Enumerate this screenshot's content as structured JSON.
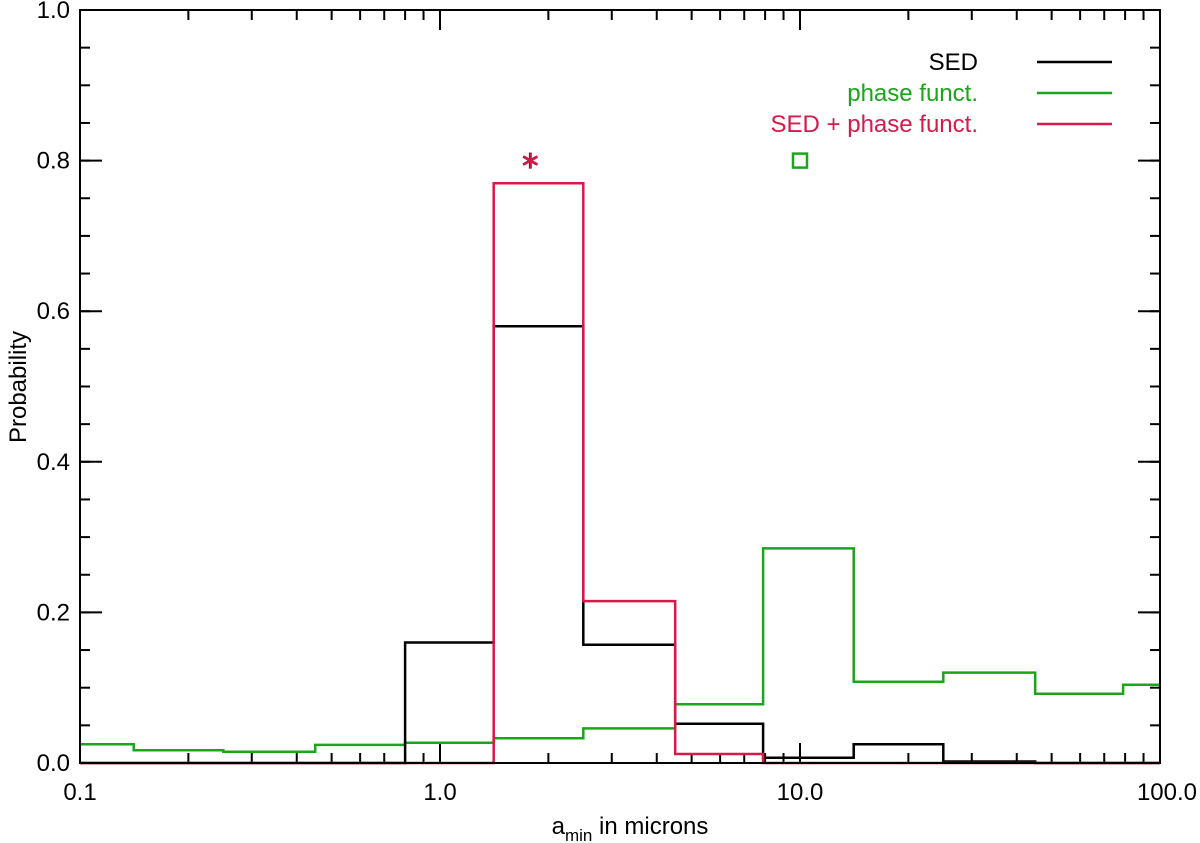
{
  "chart_data": {
    "type": "line",
    "step": true,
    "xlabel": {
      "main": "a",
      "sub": "min",
      "rest": " in microns"
    },
    "ylabel": "Probability",
    "x_scale": "log",
    "xlim": [
      0.1,
      100.0
    ],
    "ylim": [
      0.0,
      1.0
    ],
    "x_ticks": [
      0.1,
      1.0,
      10.0,
      100.0
    ],
    "x_tick_labels": [
      "0.1",
      "1.0",
      "10.0",
      "100.0"
    ],
    "y_ticks": [
      0.0,
      0.2,
      0.4,
      0.6,
      0.8,
      1.0
    ],
    "y_tick_labels": [
      "0.0",
      "0.2",
      "0.4",
      "0.6",
      "0.8",
      "1.0"
    ],
    "legend_position": "top-right",
    "bin_edges": [
      0.1,
      0.141,
      0.25,
      0.45,
      0.8,
      1.41,
      2.5,
      4.5,
      7.9,
      14.1,
      25.0,
      45.0,
      79.0,
      100.0
    ],
    "series": [
      {
        "name": "SED",
        "color": "#000000",
        "values": [
          0.0,
          0.0,
          0.0,
          0.0,
          0.16,
          0.58,
          0.157,
          0.052,
          0.007,
          0.025,
          0.002,
          0.0,
          0.0
        ]
      },
      {
        "name": "phase funct.",
        "color": "#1aa51a",
        "values": [
          0.025,
          0.017,
          0.015,
          0.024,
          0.027,
          0.033,
          0.046,
          0.078,
          0.285,
          0.108,
          0.12,
          0.092,
          0.104
        ]
      },
      {
        "name": "SED + phase funct.",
        "color": "#d61a4a",
        "values": [
          0.0,
          0.0,
          0.0,
          0.0,
          0.0,
          0.77,
          0.215,
          0.012,
          0.0,
          0.0,
          0.0,
          0.0,
          0.0
        ]
      }
    ],
    "markers": [
      {
        "shape": "asterisk",
        "x": 1.78,
        "y": 0.8,
        "colors": [
          "#000000",
          "#d61a4a"
        ]
      },
      {
        "shape": "square",
        "x": 10.0,
        "y": 0.8,
        "colors": [
          "#1aa51a"
        ]
      }
    ]
  }
}
